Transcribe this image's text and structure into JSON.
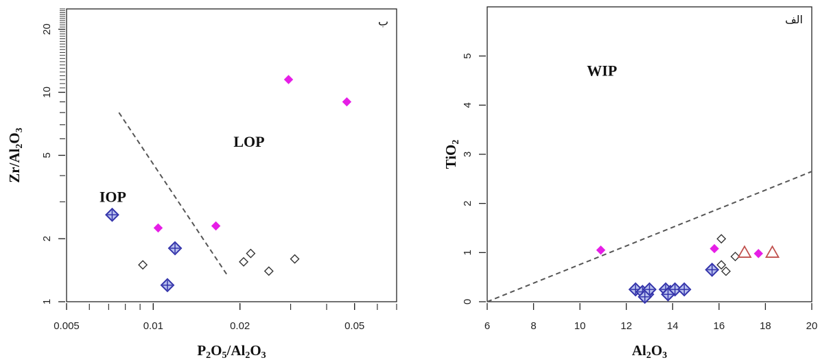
{
  "colors": {
    "blue": "#3333aa",
    "magenta": "#e61ee6",
    "black": "#333333",
    "red": "#c0504d",
    "dashed": "#555555"
  },
  "chart_data": [
    {
      "type": "scatter",
      "panel_letter": "ب",
      "xlabel_parts": [
        "P",
        "2",
        "O",
        "5",
        "/Al",
        "2",
        "O",
        "3"
      ],
      "ylabel_parts": [
        "Zr/Al",
        "2",
        "O",
        "3"
      ],
      "x_scale": "log",
      "y_scale": "log",
      "xlim": [
        0.005,
        0.07
      ],
      "ylim": [
        1,
        25
      ],
      "x_ticks": [
        0.005,
        0.01,
        0.02,
        0.05
      ],
      "x_tick_labels": [
        "0.005",
        "0.01",
        "0.02",
        "0.05"
      ],
      "y_ticks": [
        1,
        2,
        5,
        10,
        20
      ],
      "y_tick_labels": [
        "1",
        "2",
        "5",
        "10",
        "20"
      ],
      "fields": [
        {
          "label": "IOP",
          "x": 0.0065,
          "y": 3.0
        },
        {
          "label": "LOP",
          "x": 0.019,
          "y": 5.5
        }
      ],
      "boundary": [
        [
          0.0076,
          8.0
        ],
        [
          0.018,
          1.35
        ]
      ],
      "series": [
        {
          "marker": "blue-diamond",
          "points": [
            [
              0.0072,
              2.6
            ],
            [
              0.0119,
              1.8
            ],
            [
              0.0112,
              1.2
            ]
          ]
        },
        {
          "marker": "magenta-diamond",
          "points": [
            [
              0.0104,
              2.25
            ],
            [
              0.0165,
              2.3
            ],
            [
              0.0295,
              11.5
            ],
            [
              0.047,
              9.0
            ]
          ]
        },
        {
          "marker": "open-diamond",
          "points": [
            [
              0.0092,
              1.5
            ],
            [
              0.0206,
              1.55
            ],
            [
              0.0218,
              1.7
            ],
            [
              0.0252,
              1.4
            ],
            [
              0.031,
              1.6
            ]
          ]
        }
      ]
    },
    {
      "type": "scatter",
      "panel_letter": "الف",
      "xlabel_parts": [
        "Al",
        "2",
        "O",
        "3"
      ],
      "ylabel_parts": [
        "TiO",
        "2"
      ],
      "xlim": [
        6,
        20
      ],
      "ylim": [
        0,
        6
      ],
      "x_ticks": [
        6,
        8,
        10,
        12,
        14,
        16,
        18,
        20
      ],
      "x_tick_labels": [
        "6",
        "8",
        "10",
        "12",
        "14",
        "16",
        "18",
        "20"
      ],
      "y_ticks": [
        0,
        1,
        2,
        3,
        4,
        5
      ],
      "y_tick_labels": [
        "0",
        "1",
        "2",
        "3",
        "4",
        "5"
      ],
      "fields": [
        {
          "label": "WIP",
          "x": 10.3,
          "y": 4.6
        }
      ],
      "boundary": [
        [
          6,
          0
        ],
        [
          20,
          2.65
        ]
      ],
      "series": [
        {
          "marker": "blue-diamond",
          "points": [
            [
              12.4,
              0.25
            ],
            [
              12.7,
              0.2
            ],
            [
              12.9,
              0.15
            ],
            [
              13.0,
              0.25
            ],
            [
              12.8,
              0.1
            ],
            [
              13.7,
              0.25
            ],
            [
              13.9,
              0.2
            ],
            [
              14.1,
              0.25
            ],
            [
              14.5,
              0.25
            ],
            [
              13.8,
              0.15
            ],
            [
              15.7,
              0.65
            ]
          ]
        },
        {
          "marker": "magenta-diamond",
          "points": [
            [
              10.9,
              1.05
            ],
            [
              15.8,
              1.08
            ],
            [
              17.7,
              0.98
            ]
          ]
        },
        {
          "marker": "open-diamond",
          "points": [
            [
              16.1,
              0.75
            ],
            [
              16.3,
              0.62
            ],
            [
              16.7,
              0.92
            ],
            [
              16.1,
              1.28
            ]
          ]
        },
        {
          "marker": "red-triangle",
          "points": [
            [
              17.1,
              1.0
            ],
            [
              18.3,
              1.0
            ]
          ]
        }
      ]
    }
  ]
}
